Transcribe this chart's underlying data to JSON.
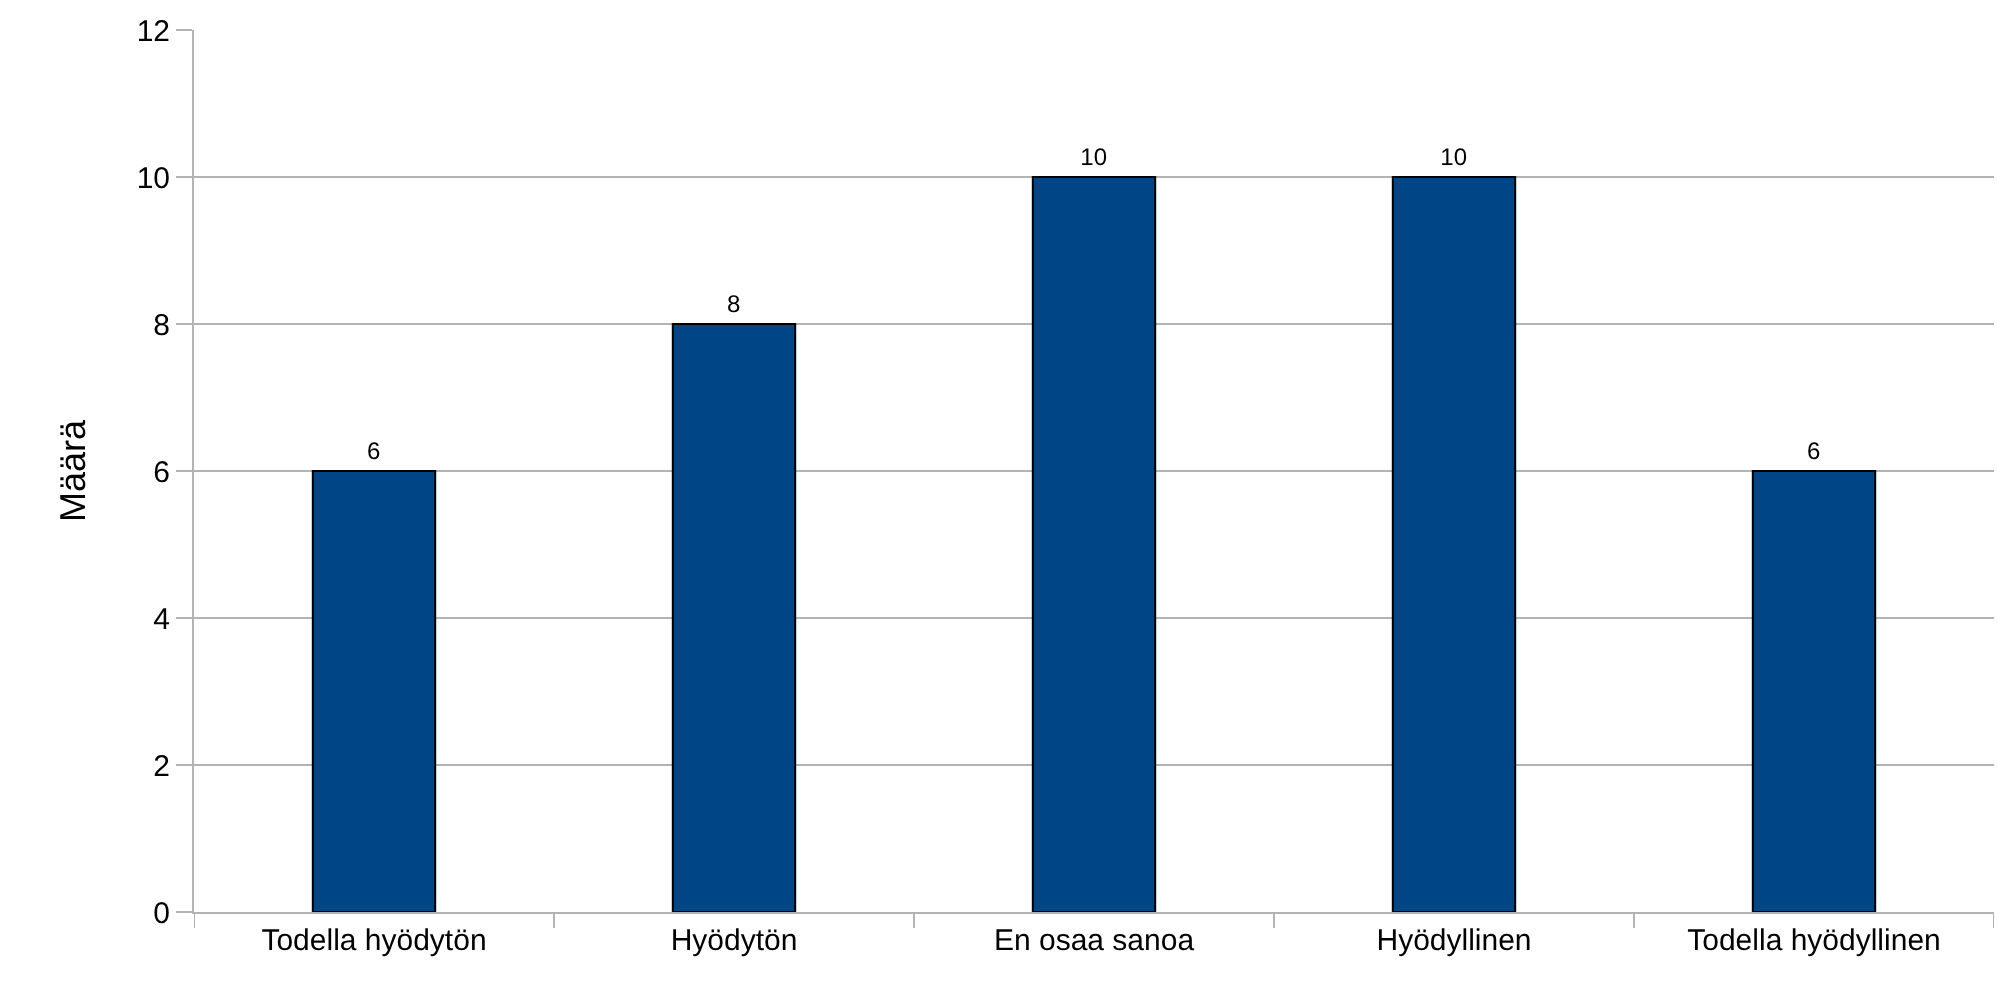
{
  "chart_data": {
    "type": "bar",
    "ylabel": "Määrä",
    "categories": [
      "Todella hyödytön",
      "Hyödytön",
      "En osaa sanoa",
      "Hyödyllinen",
      "Todella hyödyllinen"
    ],
    "values": [
      6,
      8,
      10,
      10,
      6
    ],
    "color": "#004586",
    "ylim": [
      0,
      12
    ],
    "yticks": [
      0,
      2,
      4,
      6,
      8,
      10,
      12
    ],
    "grid": "y",
    "data_labels": true
  }
}
